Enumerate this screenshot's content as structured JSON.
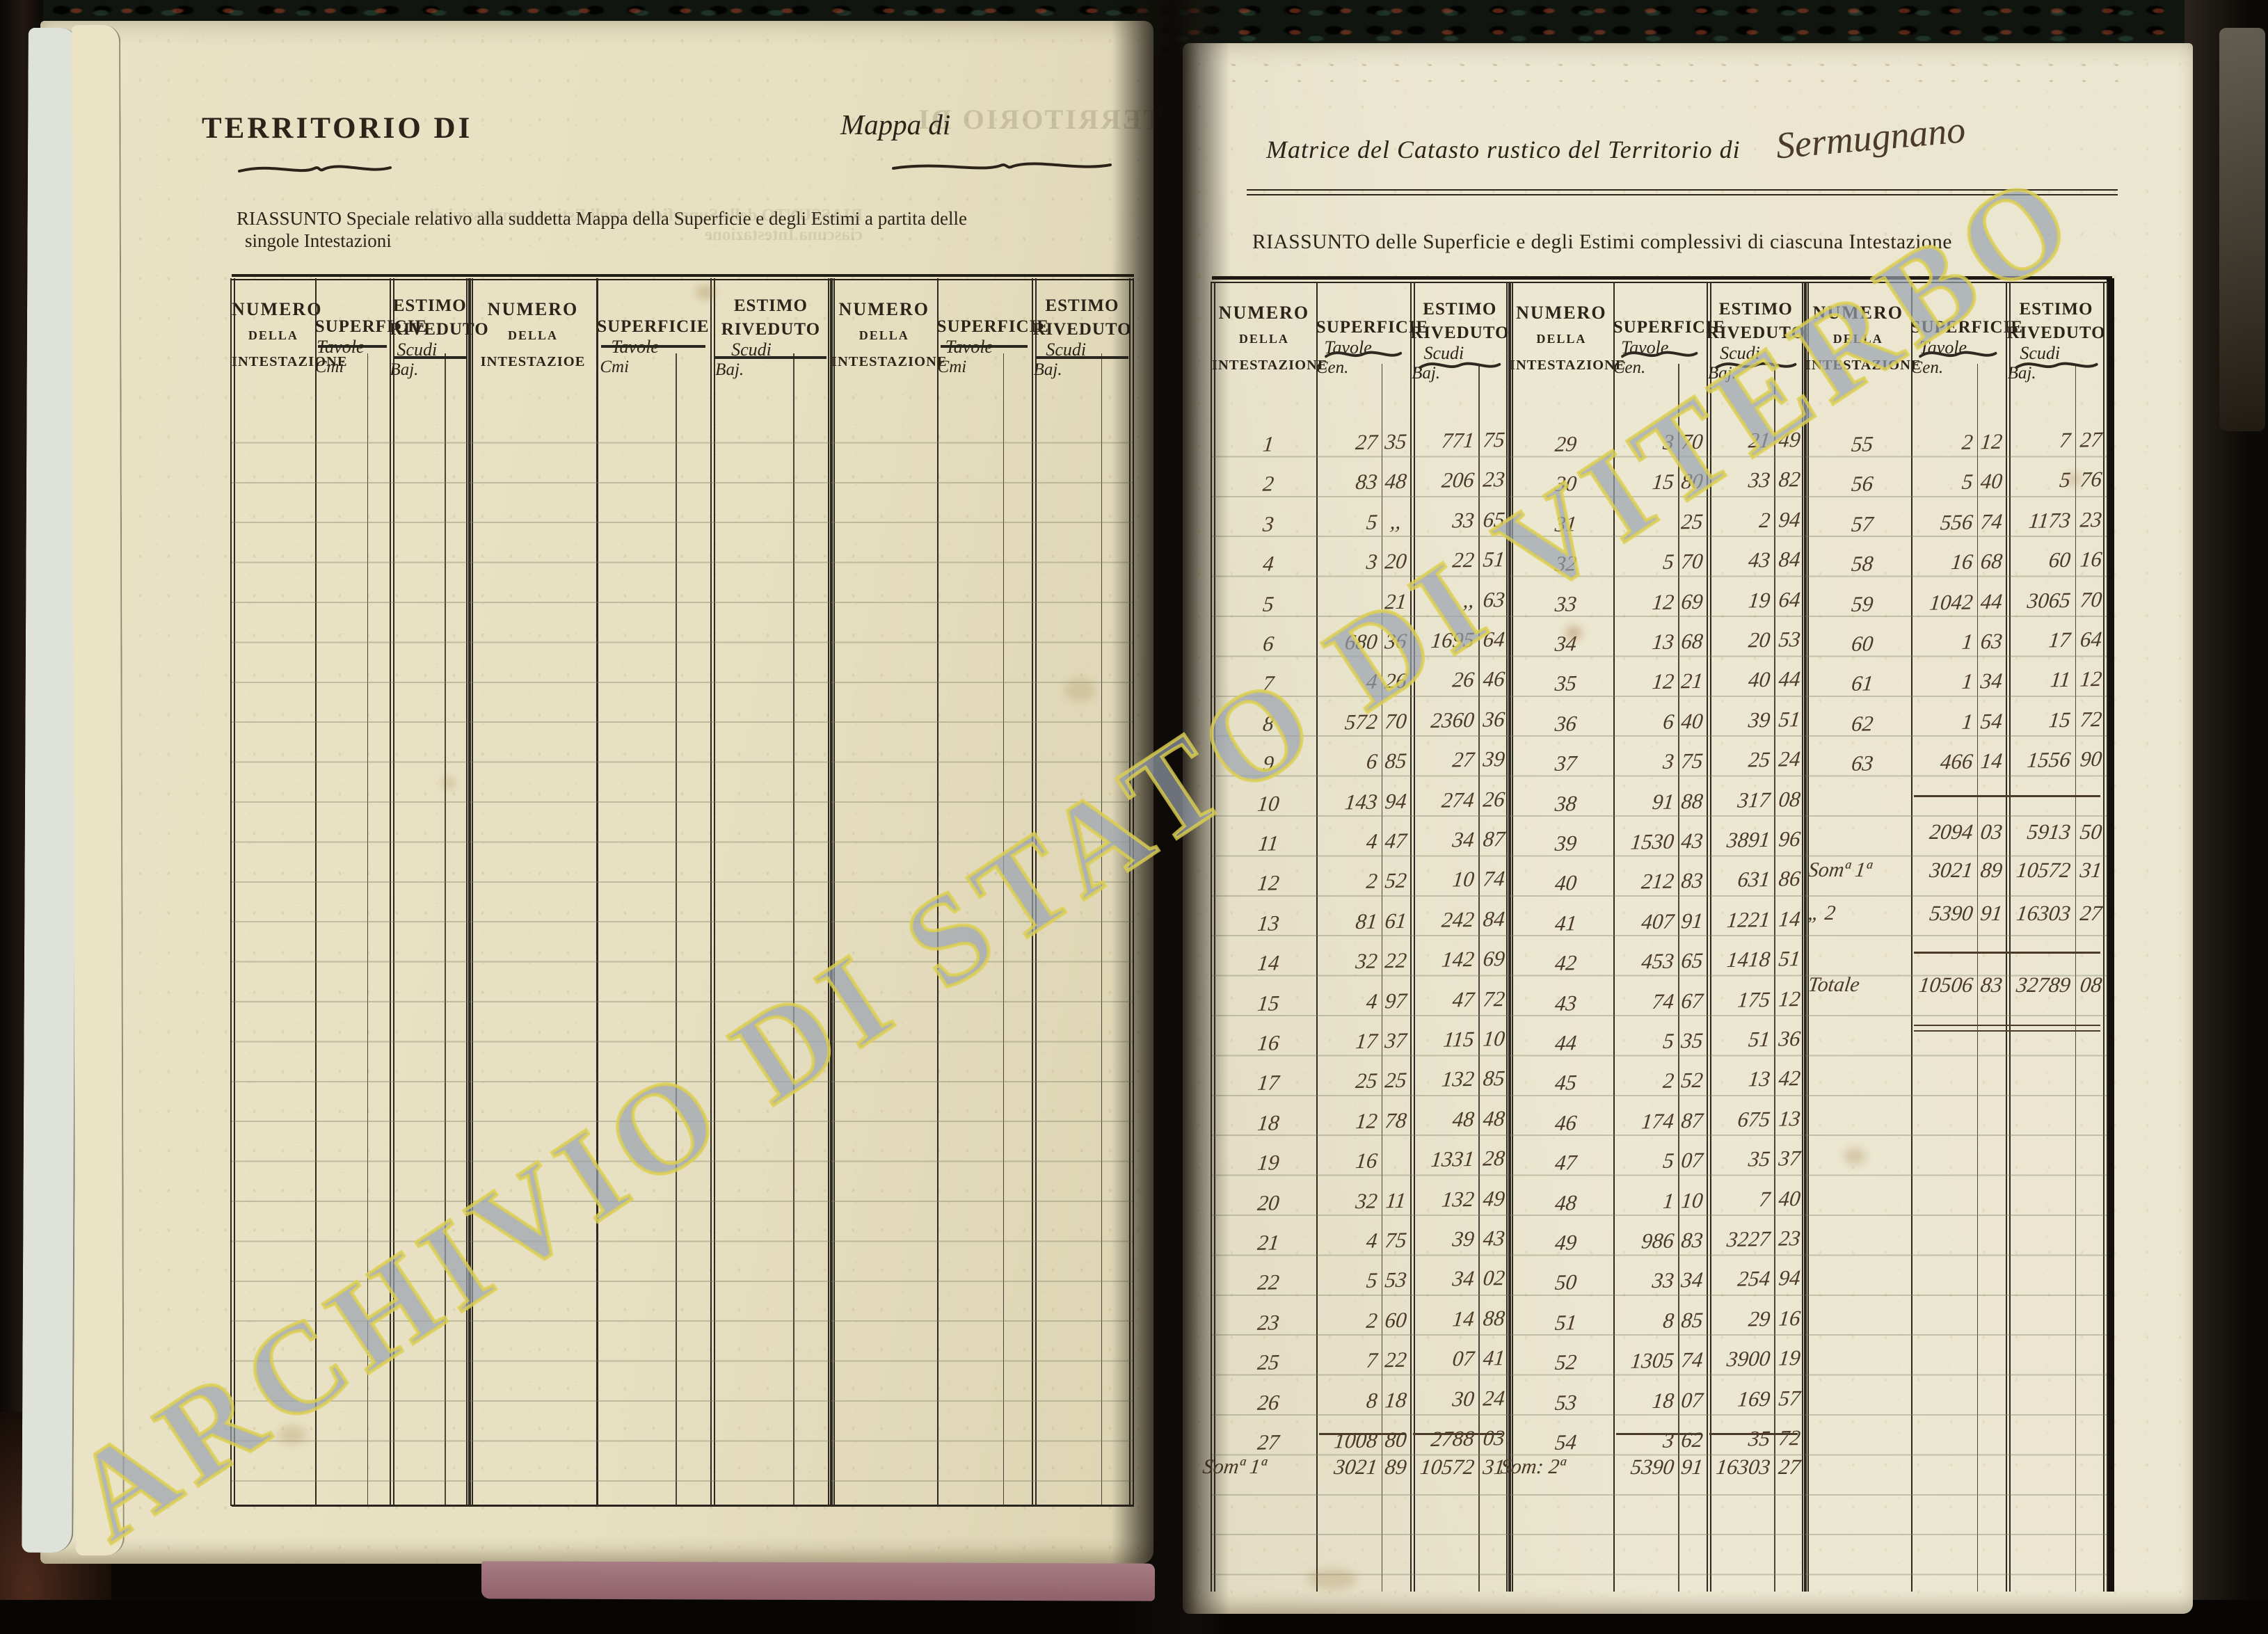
{
  "colors": {
    "print-ink": "#2c2419",
    "hand-ink": "#4a3a27",
    "rule": "#2e2920",
    "wm-fill": "rgba(130,146,207,0.52)",
    "wm-stroke": "rgba(221,208,78,0.80)",
    "paper-left": "#e7e0c3",
    "paper-right": "#ece7d0",
    "pink-strip": "#9c6e77"
  },
  "watermark": {
    "text": "ARCHIVIO DI STATO DI VITERBO"
  },
  "left_page": {
    "title": "TERRITORIO DI",
    "mappa_label": "Mappa di",
    "subtitle_line1": "RIASSUNTO Speciale relativo alla suddetta Mappa della Superficie e degli Estimi a partita delle",
    "subtitle_line2": "singole Intestazioni",
    "header": {
      "numero": "NUMERO",
      "della": "DELLA",
      "intestazione": "INTESTAZIONE",
      "intestazione_typo": "INTESTAZIOE",
      "superficie": "SUPERFICIE",
      "estimo": "ESTIMO",
      "riveduto": "RIVEDUTO",
      "tavole": "Tavole",
      "cmi": "Cmi",
      "scudi": "Scudi",
      "baj": "Baj."
    }
  },
  "right_page": {
    "title_printed": "Matrice del Catasto rustico del Territorio di",
    "title_handwritten": "Sermugnano",
    "subtitle": "RIASSUNTO delle Superficie e degli Estimi complessivi di ciascuna Intestazione",
    "header": {
      "numero": "NUMERO",
      "della": "DELLA",
      "intestazione": "INTESTAZIONE",
      "superficie": "SUPERFICIE",
      "estimo": "ESTIMO",
      "riveduto": "RIVEDUTO",
      "tavole": "Tavole",
      "cen": "Cen.",
      "scudi": "Scudi",
      "baj": "Baj."
    },
    "table": {
      "group1": {
        "rows": [
          {
            "n": "1",
            "t": "27",
            "c": "35",
            "s": "771",
            "b": "75"
          },
          {
            "n": "2",
            "t": "83",
            "c": "48",
            "s": "206",
            "b": "23"
          },
          {
            "n": "3",
            "t": "5",
            "c": ",,",
            "s": "33",
            "b": "65"
          },
          {
            "n": "4",
            "t": "3",
            "c": "20",
            "s": "22",
            "b": "51"
          },
          {
            "n": "5",
            "t": "",
            "c": "21",
            "s": ",,",
            "b": "63"
          },
          {
            "n": "6",
            "t": "680",
            "c": "36",
            "s": "1695",
            "b": "64"
          },
          {
            "n": "7",
            "t": "4",
            "c": "26",
            "s": "26",
            "b": "46"
          },
          {
            "n": "8",
            "t": "572",
            "c": "70",
            "s": "2360",
            "b": "36"
          },
          {
            "n": "9",
            "t": "6",
            "c": "85",
            "s": "27",
            "b": "39"
          },
          {
            "n": "10",
            "t": "143",
            "c": "94",
            "s": "274",
            "b": "26"
          },
          {
            "n": "11",
            "t": "4",
            "c": "47",
            "s": "34",
            "b": "87"
          },
          {
            "n": "12",
            "t": "2",
            "c": "52",
            "s": "10",
            "b": "74"
          },
          {
            "n": "13",
            "t": "81",
            "c": "61",
            "s": "242",
            "b": "84"
          },
          {
            "n": "14",
            "t": "32",
            "c": "22",
            "s": "142",
            "b": "69"
          },
          {
            "n": "15",
            "t": "4",
            "c": "97",
            "s": "47",
            "b": "72"
          },
          {
            "n": "16",
            "t": "17",
            "c": "37",
            "s": "115",
            "b": "10"
          },
          {
            "n": "17",
            "t": "25",
            "c": "25",
            "s": "132",
            "b": "85"
          },
          {
            "n": "18",
            "t": "12",
            "c": "78",
            "s": "48",
            "b": "48"
          },
          {
            "n": "19",
            "t": "16",
            "c": "",
            "s": "1331",
            "b": "28"
          },
          {
            "n": "20",
            "t": "32",
            "c": "11",
            "s": "132",
            "b": "49"
          },
          {
            "n": "21",
            "t": "4",
            "c": "75",
            "s": "39",
            "b": "43"
          },
          {
            "n": "22",
            "t": "5",
            "c": "53",
            "s": "34",
            "b": "02"
          },
          {
            "n": "23",
            "t": "2",
            "c": "60",
            "s": "14",
            "b": "88"
          },
          {
            "n": "25",
            "t": "7",
            "c": "22",
            "s": "07",
            "b": "41"
          },
          {
            "n": "26",
            "t": "8",
            "c": "18",
            "s": "30",
            "b": "24"
          },
          {
            "n": "27",
            "t": "1008",
            "c": "80",
            "s": "2788",
            "b": "03"
          }
        ],
        "footer": {
          "label": "Somª 1ª",
          "t": "3021",
          "c": "89",
          "s": "10572",
          "b": "31"
        }
      },
      "group2": {
        "rows": [
          {
            "n": "29",
            "t": "3",
            "c": "70",
            "s": "21",
            "b": "49"
          },
          {
            "n": "30",
            "t": "15",
            "c": "80",
            "s": "33",
            "b": "82"
          },
          {
            "n": "31",
            "t": "",
            "c": "25",
            "s": "2",
            "b": "94"
          },
          {
            "n": "32",
            "t": "5",
            "c": "70",
            "s": "43",
            "b": "84"
          },
          {
            "n": "33",
            "t": "12",
            "c": "69",
            "s": "19",
            "b": "64"
          },
          {
            "n": "34",
            "t": "13",
            "c": "68",
            "s": "20",
            "b": "53"
          },
          {
            "n": "35",
            "t": "12",
            "c": "21",
            "s": "40",
            "b": "44"
          },
          {
            "n": "36",
            "t": "6",
            "c": "40",
            "s": "39",
            "b": "51"
          },
          {
            "n": "37",
            "t": "3",
            "c": "75",
            "s": "25",
            "b": "24"
          },
          {
            "n": "38",
            "t": "91",
            "c": "88",
            "s": "317",
            "b": "08"
          },
          {
            "n": "39",
            "t": "1530",
            "c": "43",
            "s": "3891",
            "b": "96"
          },
          {
            "n": "40",
            "t": "212",
            "c": "83",
            "s": "631",
            "b": "86"
          },
          {
            "n": "41",
            "t": "407",
            "c": "91",
            "s": "1221",
            "b": "14"
          },
          {
            "n": "42",
            "t": "453",
            "c": "65",
            "s": "1418",
            "b": "51"
          },
          {
            "n": "43",
            "t": "74",
            "c": "67",
            "s": "175",
            "b": "12"
          },
          {
            "n": "44",
            "t": "5",
            "c": "35",
            "s": "51",
            "b": "36"
          },
          {
            "n": "45",
            "t": "2",
            "c": "52",
            "s": "13",
            "b": "42"
          },
          {
            "n": "46",
            "t": "174",
            "c": "87",
            "s": "675",
            "b": "13"
          },
          {
            "n": "47",
            "t": "5",
            "c": "07",
            "s": "35",
            "b": "37"
          },
          {
            "n": "48",
            "t": "1",
            "c": "10",
            "s": "7",
            "b": "40"
          },
          {
            "n": "49",
            "t": "986",
            "c": "83",
            "s": "3227",
            "b": "23"
          },
          {
            "n": "50",
            "t": "33",
            "c": "34",
            "s": "254",
            "b": "94"
          },
          {
            "n": "51",
            "t": "8",
            "c": "85",
            "s": "29",
            "b": "16"
          },
          {
            "n": "52",
            "t": "1305",
            "c": "74",
            "s": "3900",
            "b": "19"
          },
          {
            "n": "53",
            "t": "18",
            "c": "07",
            "s": "169",
            "b": "57"
          },
          {
            "n": "54",
            "t": "3",
            "c": "62",
            "s": "35",
            "b": "72"
          }
        ],
        "footer": {
          "label": "Som: 2ª",
          "t": "5390",
          "c": "91",
          "s": "16303",
          "b": "27"
        }
      },
      "group3": {
        "rows": [
          {
            "n": "55",
            "t": "2",
            "c": "12",
            "s": "7",
            "b": "27"
          },
          {
            "n": "56",
            "t": "5",
            "c": "40",
            "s": "5",
            "b": "76"
          },
          {
            "n": "57",
            "t": "556",
            "c": "74",
            "s": "1173",
            "b": "23"
          },
          {
            "n": "58",
            "t": "16",
            "c": "68",
            "s": "60",
            "b": "16"
          },
          {
            "n": "59",
            "t": "1042",
            "c": "44",
            "s": "3065",
            "b": "70"
          },
          {
            "n": "60",
            "t": "1",
            "c": "63",
            "s": "17",
            "b": "64"
          },
          {
            "n": "61",
            "t": "1",
            "c": "34",
            "s": "11",
            "b": "12"
          },
          {
            "n": "62",
            "t": "1",
            "c": "54",
            "s": "15",
            "b": "72"
          },
          {
            "n": "63",
            "t": "466",
            "c": "14",
            "s": "1556",
            "b": "90"
          }
        ],
        "subtotal": {
          "label": "",
          "t": "2094",
          "c": "03",
          "s": "5913",
          "b": "50"
        },
        "som1": {
          "label": "Somª 1ª",
          "t": "3021",
          "c": "89",
          "s": "10572",
          "b": "31"
        },
        "som2": {
          "label": "„   2",
          "t": "5390",
          "c": "91",
          "s": "16303",
          "b": "27"
        },
        "totale": {
          "label": "Totale",
          "t": "10506",
          "c": "83",
          "s": "32789",
          "b": "08"
        }
      }
    }
  }
}
